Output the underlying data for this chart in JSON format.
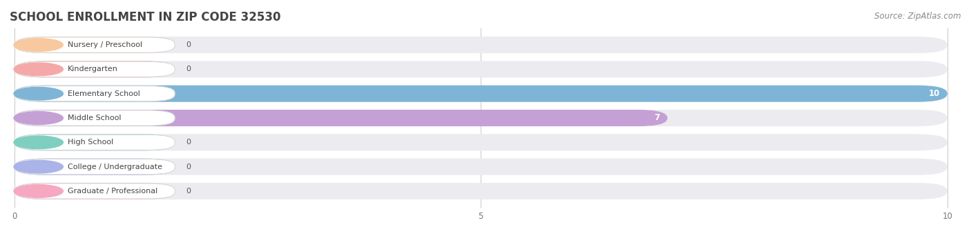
{
  "title": "SCHOOL ENROLLMENT IN ZIP CODE 32530",
  "source": "Source: ZipAtlas.com",
  "categories": [
    "Nursery / Preschool",
    "Kindergarten",
    "Elementary School",
    "Middle School",
    "High School",
    "College / Undergraduate",
    "Graduate / Professional"
  ],
  "values": [
    0,
    0,
    10,
    7,
    0,
    0,
    0
  ],
  "bar_colors": [
    "#f8c99e",
    "#f5a8a8",
    "#7eb5d6",
    "#c4a0d4",
    "#7ecfbf",
    "#aab4e8",
    "#f5a8c0"
  ],
  "xlim_max": 10,
  "xticks": [
    0,
    5,
    10
  ],
  "background_color": "#ffffff",
  "bar_bg_color": "#ebebf0",
  "title_fontsize": 12,
  "source_fontsize": 8.5,
  "label_fontsize": 8,
  "value_fontsize": 8
}
